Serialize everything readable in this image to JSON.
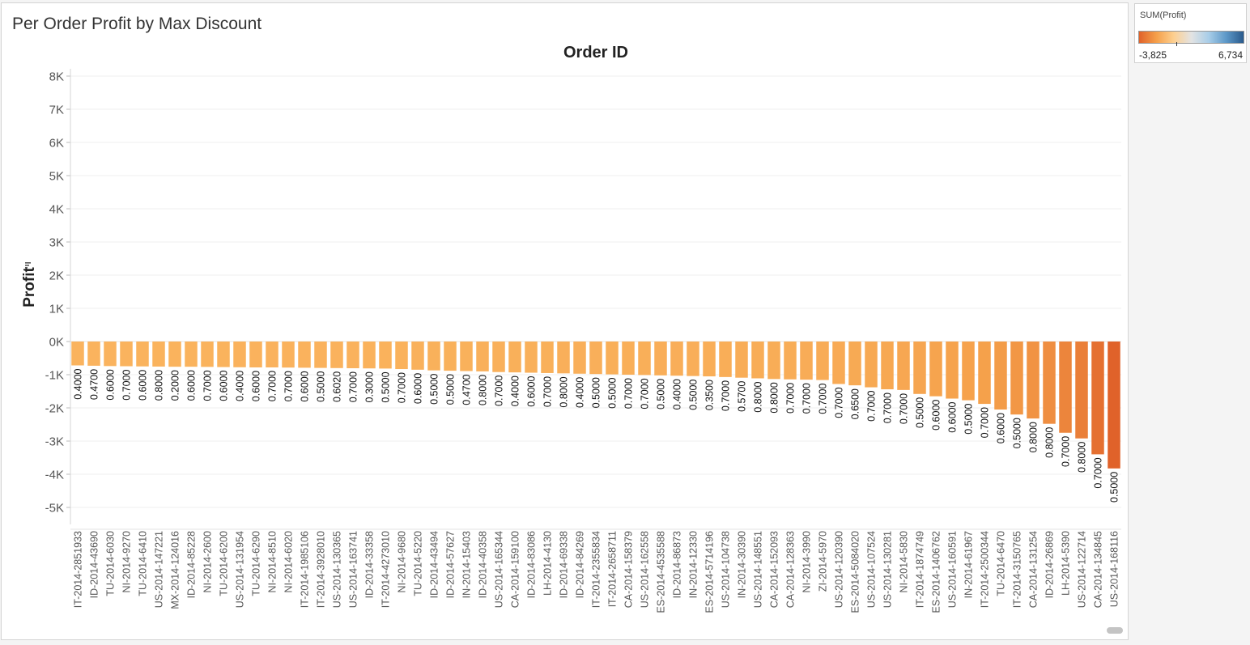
{
  "title": "Per Order Profit by Max Discount",
  "legend": {
    "title": "SUM(Profit)",
    "min_label": "-3,825",
    "max_label": "6,734",
    "colors": {
      "min": "#e0622a",
      "mid": "#e8e8e8",
      "max": "#2a5a8c",
      "ramp": [
        "#e0622a",
        "#f5a04a",
        "#fdcf90",
        "#e3e3e3",
        "#a8cde8",
        "#5d98c8",
        "#2a5a8c"
      ]
    }
  },
  "chart_data": {
    "type": "bar",
    "title": "Order ID",
    "xlabel": "Order ID",
    "ylabel": "Profit",
    "ylim": [
      -5500,
      8500
    ],
    "yticks": [
      8000,
      7000,
      6000,
      5000,
      4000,
      3000,
      2000,
      1000,
      0,
      -1000,
      -2000,
      -3000,
      -4000,
      -5000
    ],
    "ytick_labels": [
      "8K",
      "7K",
      "6K",
      "5K",
      "4K",
      "3K",
      "2K",
      "1K",
      "0K",
      "-1K",
      "-2K",
      "-3K",
      "-4K",
      "-5K"
    ],
    "grid": true,
    "color_range": [
      -3825,
      6734
    ],
    "categories": [
      "IT-2014-2851933",
      "ID-2014-43690",
      "TU-2014-6030",
      "NI-2014-9270",
      "TU-2014-6410",
      "US-2014-147221",
      "MX-2014-124016",
      "ID-2014-85228",
      "NI-2014-2600",
      "TU-2014-6200",
      "US-2014-131954",
      "TU-2014-6290",
      "NI-2014-8510",
      "NI-2014-6020",
      "IT-2014-1985106",
      "IT-2014-3928010",
      "US-2014-130365",
      "US-2014-163741",
      "ID-2014-33358",
      "IT-2014-4273010",
      "NI-2014-9680",
      "TU-2014-5220",
      "ID-2014-43494",
      "ID-2014-57627",
      "IN-2014-15403",
      "ID-2014-40358",
      "US-2014-165344",
      "CA-2014-159100",
      "ID-2014-83086",
      "LH-2014-4130",
      "ID-2014-69338",
      "ID-2014-84269",
      "IT-2014-2355834",
      "IT-2014-2658711",
      "CA-2014-158379",
      "US-2014-162558",
      "ES-2014-4535588",
      "ID-2014-86873",
      "IN-2014-12330",
      "ES-2014-5714196",
      "US-2014-104738",
      "IN-2014-30390",
      "US-2014-148551",
      "CA-2014-152093",
      "CA-2014-128363",
      "NI-2014-3990",
      "ZI-2014-5970",
      "US-2014-120390",
      "ES-2014-5084020",
      "US-2014-107524",
      "US-2014-130281",
      "NI-2014-5830",
      "IT-2014-1874749",
      "ES-2014-1406762",
      "US-2014-160591",
      "IN-2014-61967",
      "IT-2014-2500344",
      "TU-2014-6470",
      "IT-2014-3150765",
      "CA-2014-131254",
      "ID-2014-26869",
      "LH-2014-5390",
      "US-2014-122714",
      "CA-2014-134845",
      "US-2014-168116"
    ],
    "values": [
      -720,
      -730,
      -740,
      -745,
      -750,
      -755,
      -760,
      -760,
      -765,
      -770,
      -775,
      -780,
      -780,
      -785,
      -790,
      -795,
      -800,
      -805,
      -810,
      -815,
      -830,
      -850,
      -870,
      -880,
      -890,
      -900,
      -920,
      -930,
      -940,
      -950,
      -960,
      -970,
      -980,
      -990,
      -1000,
      -1010,
      -1020,
      -1030,
      -1040,
      -1050,
      -1070,
      -1090,
      -1110,
      -1130,
      -1140,
      -1150,
      -1160,
      -1280,
      -1320,
      -1380,
      -1440,
      -1460,
      -1580,
      -1650,
      -1720,
      -1770,
      -1880,
      -2050,
      -2200,
      -2320,
      -2480,
      -2750,
      -2920,
      -3400,
      -3825
    ],
    "data_labels": [
      "0.4000",
      "0.4700",
      "0.6000",
      "0.7000",
      "0.6000",
      "0.8000",
      "0.2000",
      "0.6000",
      "0.7000",
      "0.6000",
      "0.4000",
      "0.6000",
      "0.7000",
      "0.7000",
      "0.6000",
      "0.5000",
      "0.6020",
      "0.7000",
      "0.3000",
      "0.5000",
      "0.7000",
      "0.6000",
      "0.5000",
      "0.5000",
      "0.4700",
      "0.8000",
      "0.7000",
      "0.4000",
      "0.6000",
      "0.7000",
      "0.8000",
      "0.4000",
      "0.5000",
      "0.5000",
      "0.7000",
      "0.7000",
      "0.5000",
      "0.4000",
      "0.5000",
      "0.3500",
      "0.7000",
      "0.5700",
      "0.8000",
      "0.8000",
      "0.7000",
      "0.7000",
      "0.7000",
      "0.7000",
      "0.6500",
      "0.7000",
      "0.7000",
      "0.7000",
      "0.5000",
      "0.6000",
      "0.6000",
      "0.5000",
      "0.7000",
      "0.6000",
      "0.5000",
      "0.8000",
      "0.8000",
      "0.7000",
      "0.8000",
      "0.7000",
      "0.5000"
    ]
  }
}
